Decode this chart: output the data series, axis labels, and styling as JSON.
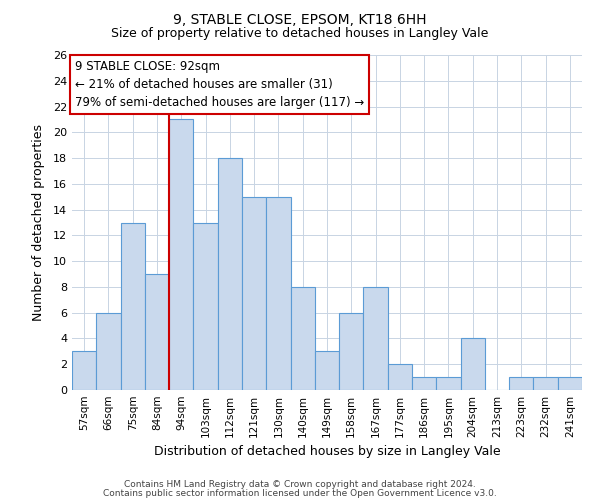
{
  "title_line1": "9, STABLE CLOSE, EPSOM, KT18 6HH",
  "title_line2": "Size of property relative to detached houses in Langley Vale",
  "xlabel": "Distribution of detached houses by size in Langley Vale",
  "ylabel": "Number of detached properties",
  "categories": [
    "57sqm",
    "66sqm",
    "75sqm",
    "84sqm",
    "94sqm",
    "103sqm",
    "112sqm",
    "121sqm",
    "130sqm",
    "140sqm",
    "149sqm",
    "158sqm",
    "167sqm",
    "177sqm",
    "186sqm",
    "195sqm",
    "204sqm",
    "213sqm",
    "223sqm",
    "232sqm",
    "241sqm"
  ],
  "values": [
    3,
    6,
    13,
    9,
    21,
    13,
    18,
    15,
    15,
    8,
    3,
    6,
    8,
    2,
    1,
    1,
    4,
    0,
    1,
    1,
    1
  ],
  "bar_color": "#c9d9ed",
  "bar_edge_color": "#5b9bd5",
  "grid_color": "#c8d4e3",
  "vline_x": 3.5,
  "vline_color": "#cc0000",
  "annotation_title": "9 STABLE CLOSE: 92sqm",
  "annotation_line1": "← 21% of detached houses are smaller (31)",
  "annotation_line2": "79% of semi-detached houses are larger (117) →",
  "annotation_box_color": "#ffffff",
  "annotation_box_edge": "#cc0000",
  "ylim": [
    0,
    26
  ],
  "yticks": [
    0,
    2,
    4,
    6,
    8,
    10,
    12,
    14,
    16,
    18,
    20,
    22,
    24,
    26
  ],
  "footnote1": "Contains HM Land Registry data © Crown copyright and database right 2024.",
  "footnote2": "Contains public sector information licensed under the Open Government Licence v3.0."
}
